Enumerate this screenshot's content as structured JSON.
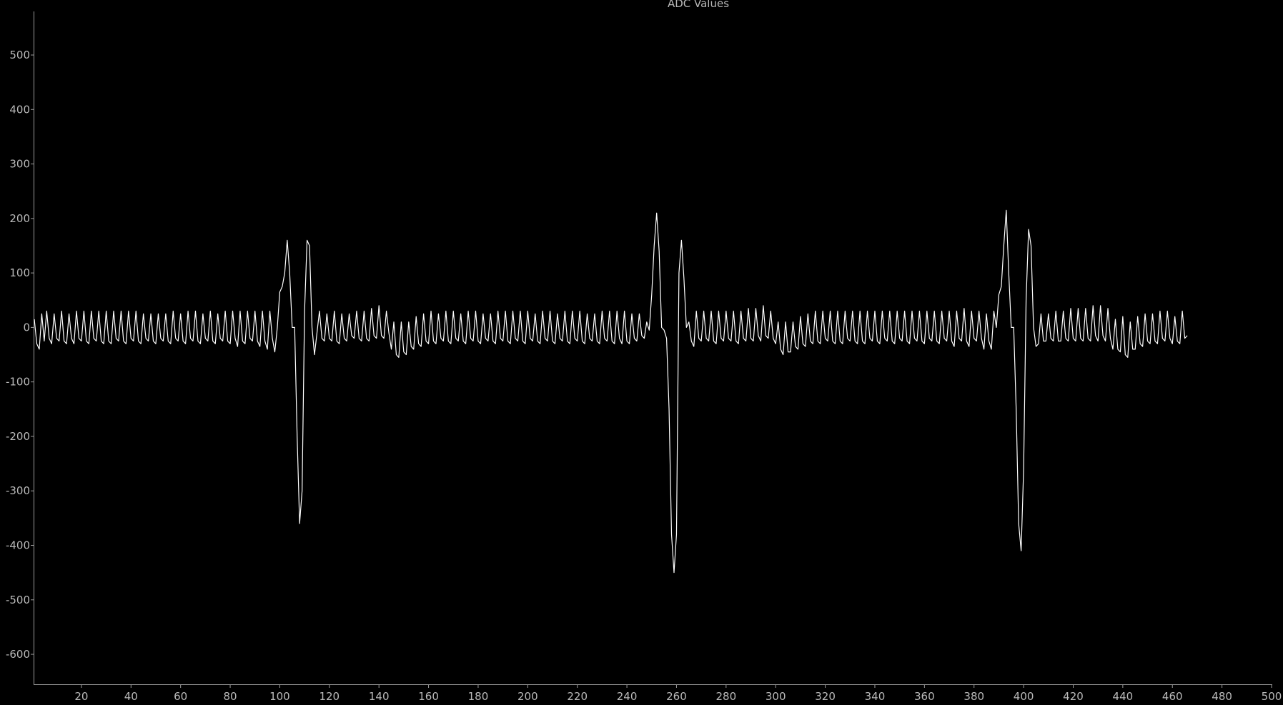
{
  "chart_data": {
    "type": "line",
    "title": "ADC Values",
    "xlabel": "",
    "ylabel": "",
    "xlim": [
      1,
      500
    ],
    "ylim": [
      -655,
      580
    ],
    "x_ticks": [
      20,
      40,
      60,
      80,
      100,
      120,
      140,
      160,
      180,
      200,
      220,
      240,
      260,
      280,
      300,
      320,
      340,
      360,
      380,
      400,
      420,
      440,
      460,
      480,
      500
    ],
    "y_ticks": [
      500,
      400,
      300,
      200,
      100,
      0,
      -100,
      -200,
      -300,
      -400,
      -500,
      -600
    ],
    "grid": false,
    "line_color": "#ffffff",
    "series": [
      {
        "x_start": 1,
        "values": [
          15,
          -30,
          -40,
          25,
          -25,
          30,
          -20,
          -30,
          25,
          -20,
          -25,
          30,
          -25,
          -30,
          25,
          -20,
          -30,
          30,
          -20,
          -25,
          30,
          -25,
          -30,
          30,
          -20,
          -25,
          30,
          -25,
          -30,
          30,
          -25,
          -30,
          30,
          -20,
          -25,
          30,
          -25,
          -30,
          30,
          -20,
          -25,
          30,
          -25,
          -30,
          25,
          -20,
          -25,
          25,
          -25,
          -30,
          25,
          -20,
          -25,
          25,
          -25,
          -30,
          30,
          -20,
          -25,
          25,
          -25,
          -30,
          30,
          -20,
          -25,
          30,
          -25,
          -30,
          25,
          -20,
          -25,
          30,
          -25,
          -30,
          25,
          -20,
          -25,
          30,
          -25,
          -30,
          30,
          -20,
          -35,
          30,
          -25,
          -30,
          30,
          -20,
          -25,
          30,
          -25,
          -35,
          30,
          -25,
          -40,
          30,
          -20,
          -45,
          0,
          65,
          75,
          100,
          160,
          100,
          0,
          0,
          -200,
          -360,
          -300,
          30,
          160,
          150,
          0,
          -50,
          -10,
          30,
          -20,
          -25,
          25,
          -20,
          -25,
          30,
          -25,
          -30,
          25,
          -20,
          -25,
          25,
          -15,
          -20,
          30,
          -20,
          -25,
          30,
          -20,
          -25,
          35,
          -15,
          -20,
          40,
          -15,
          -20,
          30,
          -10,
          -40,
          10,
          -50,
          -55,
          10,
          -45,
          -50,
          10,
          -35,
          -40,
          20,
          -30,
          -35,
          25,
          -25,
          -30,
          30,
          -25,
          -30,
          25,
          -20,
          -25,
          30,
          -25,
          -30,
          30,
          -20,
          -25,
          25,
          -25,
          -30,
          30,
          -20,
          -25,
          30,
          -25,
          -30,
          25,
          -20,
          -25,
          25,
          -25,
          -30,
          30,
          -20,
          -25,
          30,
          -25,
          -30,
          30,
          -20,
          -25,
          30,
          -25,
          -30,
          30,
          -20,
          -25,
          25,
          -25,
          -30,
          30,
          -20,
          -25,
          30,
          -25,
          -30,
          25,
          -20,
          -25,
          30,
          -25,
          -30,
          30,
          -20,
          -25,
          30,
          -25,
          -30,
          25,
          -20,
          -25,
          25,
          -25,
          -30,
          30,
          -20,
          -25,
          30,
          -25,
          -30,
          30,
          -20,
          -30,
          30,
          -25,
          -30,
          25,
          -20,
          -25,
          25,
          -15,
          -20,
          10,
          -5,
          60,
          150,
          210,
          140,
          0,
          -5,
          -20,
          -150,
          -380,
          -450,
          -380,
          100,
          160,
          90,
          0,
          10,
          -25,
          -35,
          30,
          -20,
          -25,
          30,
          -20,
          -25,
          30,
          -25,
          -30,
          30,
          -20,
          -25,
          30,
          -20,
          -25,
          30,
          -25,
          -30,
          30,
          -20,
          -25,
          35,
          -20,
          -25,
          35,
          -15,
          -25,
          40,
          -15,
          -20,
          30,
          -20,
          -30,
          10,
          -40,
          -50,
          10,
          -45,
          -45,
          10,
          -35,
          -40,
          20,
          -30,
          -35,
          25,
          -25,
          -30,
          30,
          -25,
          -30,
          30,
          -20,
          -25,
          30,
          -25,
          -30,
          30,
          -25,
          -30,
          30,
          -20,
          -25,
          30,
          -25,
          -30,
          30,
          -25,
          -30,
          30,
          -20,
          -25,
          30,
          -25,
          -30,
          30,
          -20,
          -25,
          30,
          -25,
          -30,
          30,
          -20,
          -25,
          30,
          -25,
          -30,
          30,
          -20,
          -25,
          30,
          -25,
          -30,
          30,
          -20,
          -25,
          30,
          -25,
          -30,
          30,
          -20,
          -25,
          30,
          -25,
          -35,
          30,
          -20,
          -25,
          35,
          -25,
          -35,
          30,
          -20,
          -25,
          30,
          -20,
          -40,
          25,
          -25,
          -40,
          30,
          0,
          60,
          75,
          150,
          215,
          100,
          0,
          0,
          -150,
          -360,
          -410,
          -260,
          50,
          180,
          150,
          0,
          -35,
          -30,
          25,
          -25,
          -25,
          25,
          -20,
          -25,
          30,
          -25,
          -25,
          30,
          -20,
          -25,
          35,
          -20,
          -25,
          35,
          -20,
          -25,
          35,
          -20,
          -25,
          40,
          -15,
          -25,
          40,
          -15,
          -25,
          35,
          -20,
          -40,
          15,
          -40,
          -45,
          20,
          -50,
          -55,
          10,
          -40,
          -40,
          20,
          -30,
          -35,
          25,
          -25,
          -30,
          25,
          -25,
          -30,
          30,
          -20,
          -25,
          30,
          -20,
          -30,
          20,
          -25,
          -30,
          30,
          -20,
          -15
        ]
      }
    ]
  }
}
